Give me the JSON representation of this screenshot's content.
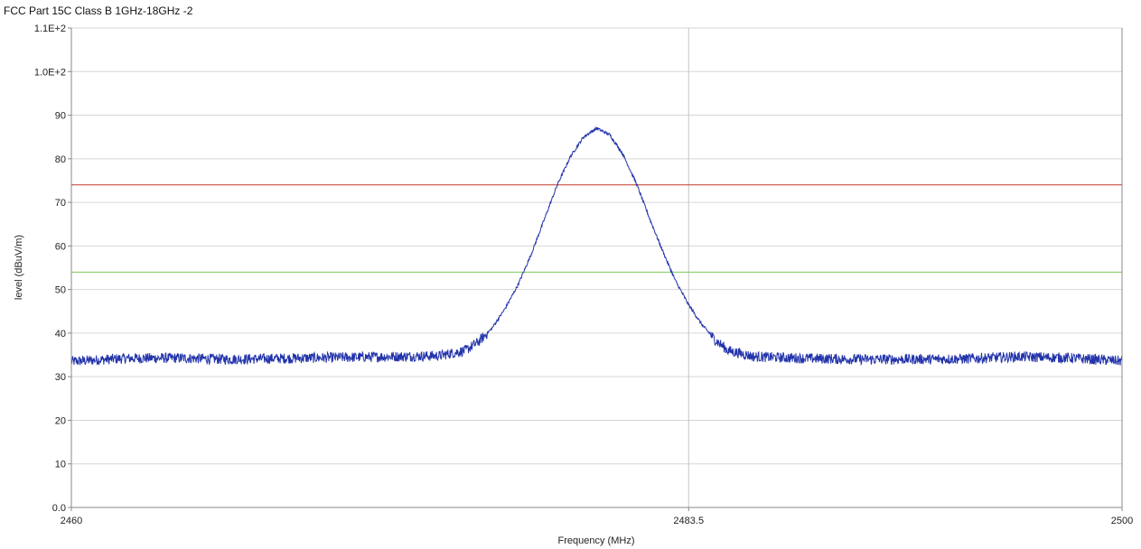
{
  "chart_data": {
    "type": "line",
    "title": "FCC Part 15C  Class B 1GHz-18GHz -2",
    "xlabel": "Frequency (MHz)",
    "ylabel": "level (dBuV/m)",
    "xlim": [
      2460,
      2500
    ],
    "ylim": [
      0,
      110
    ],
    "x_ticks": [
      2460,
      2483.5,
      2500
    ],
    "x_tick_labels": [
      "2460",
      "2483.5",
      "2500"
    ],
    "y_ticks": [
      0,
      10,
      20,
      30,
      40,
      50,
      60,
      70,
      80,
      90,
      100,
      110
    ],
    "y_tick_labels": [
      "0.0",
      "10",
      "20",
      "30",
      "40",
      "50",
      "60",
      "70",
      "80",
      "90",
      "1.0E+2",
      "1.1E+2"
    ],
    "grid": true,
    "marker_line_x": 2483.5,
    "limit_lines": [
      {
        "value": 74,
        "color": "#c0392b"
      },
      {
        "value": 54,
        "color": "#7ccb5a"
      }
    ],
    "series": [
      {
        "color": "#2233aa",
        "x": [
          2460,
          2462,
          2464,
          2466,
          2468,
          2470,
          2472,
          2474,
          2475,
          2475.5,
          2476,
          2476.5,
          2477,
          2477.5,
          2478,
          2478.5,
          2479,
          2479.5,
          2480,
          2480.5,
          2481,
          2481.5,
          2482,
          2482.5,
          2483,
          2483.5,
          2484,
          2484.5,
          2485,
          2486,
          2488,
          2490,
          2492,
          2494,
          2496,
          2498,
          2500
        ],
        "values": [
          33.5,
          34.2,
          34.3,
          34.0,
          34.2,
          34.4,
          34.6,
          34.8,
          36.0,
          38.0,
          41.0,
          45.5,
          51.0,
          58.0,
          66.0,
          74.0,
          80.5,
          85.0,
          87.0,
          85.5,
          81.0,
          74.5,
          66.5,
          59.0,
          52.0,
          46.5,
          42.0,
          38.5,
          36.0,
          34.6,
          34.2,
          34.0,
          34.0,
          34.1,
          34.6,
          34.3,
          33.6
        ]
      }
    ]
  }
}
